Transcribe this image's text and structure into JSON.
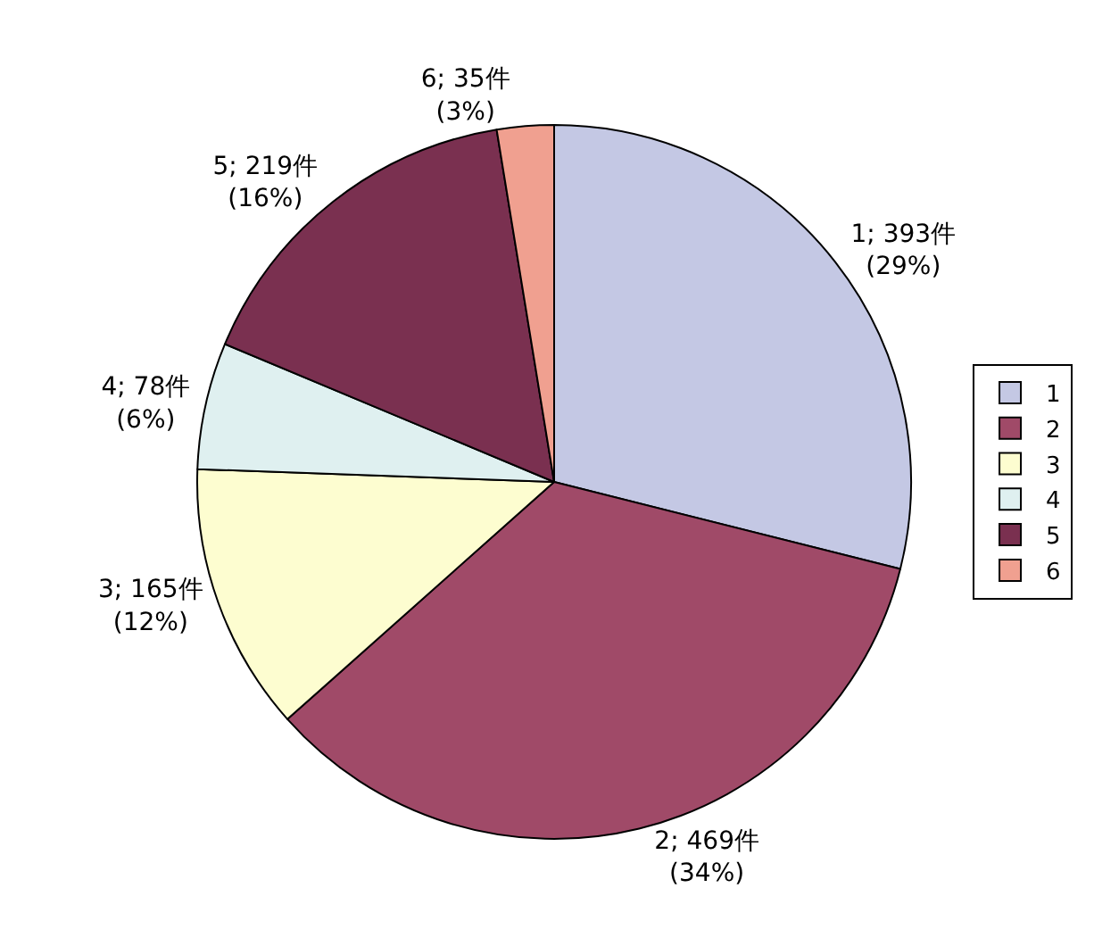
{
  "chart_data": {
    "type": "pie",
    "categories": [
      "1",
      "2",
      "3",
      "4",
      "5",
      "6"
    ],
    "values": [
      393,
      469,
      165,
      78,
      219,
      35
    ],
    "colors": [
      "#c4c8e4",
      "#a04a68",
      "#fdfdd0",
      "#dff0f0",
      "#7a3050",
      "#f0a090"
    ],
    "value_labels": [
      "1; 393件\n(29%)",
      "2; 469件\n(34%)",
      "3; 165件\n(12%)",
      "4; 78件\n(6%)",
      "5; 219件\n(16%)",
      "6; 35件\n(3%)"
    ],
    "legend": "right"
  }
}
